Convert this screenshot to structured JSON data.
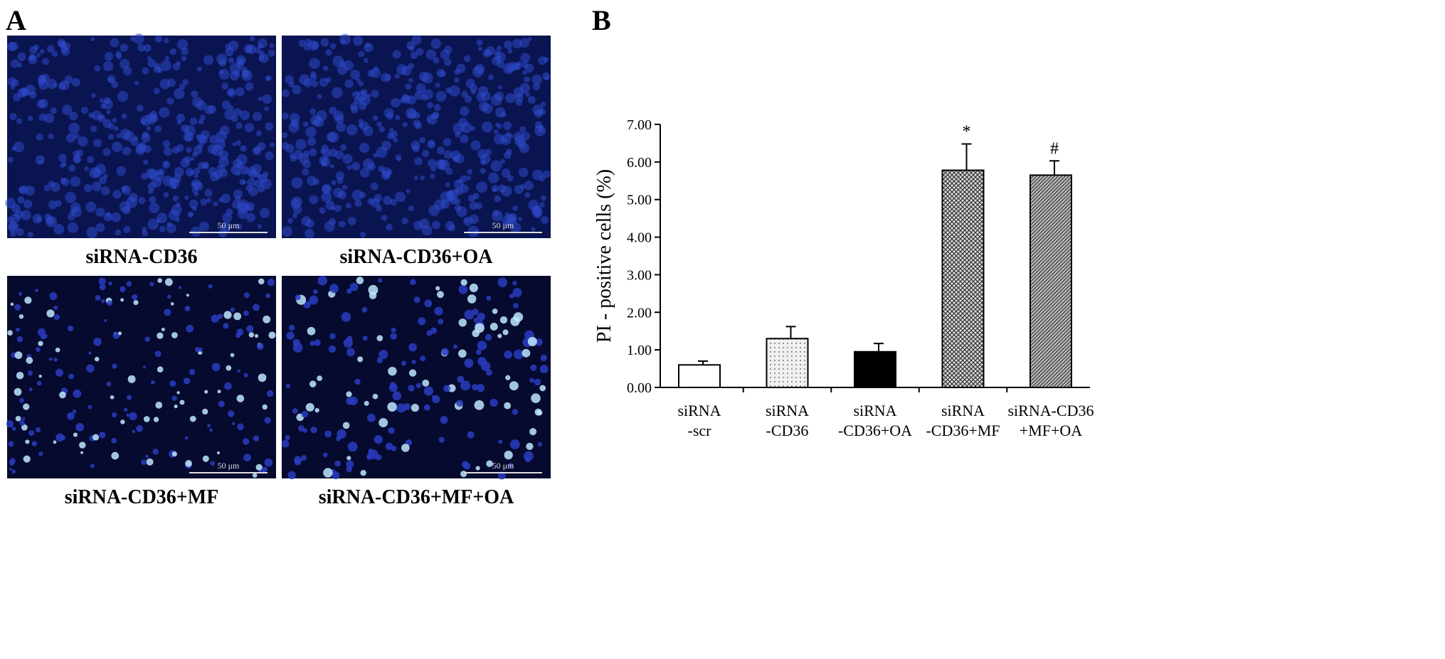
{
  "panel_labels": [
    "A",
    "B"
  ],
  "images": [
    {
      "caption": "siRNA-CD36",
      "scale_bar": "50 μm"
    },
    {
      "caption": "siRNA-CD36+OA",
      "scale_bar": "50 μm"
    },
    {
      "caption": "siRNA-CD36+MF",
      "scale_bar": "50 μm"
    },
    {
      "caption": "siRNA-CD36+MF+OA",
      "scale_bar": "50 μm"
    }
  ],
  "chart_data": {
    "type": "bar",
    "y_label": "PI - positive cells  (%)",
    "categories": [
      [
        "siRNA",
        "-scr"
      ],
      [
        "siRNA",
        "-CD36"
      ],
      [
        "siRNA",
        "-CD36+OA"
      ],
      [
        "siRNA",
        "-CD36+MF"
      ],
      [
        "siRNA-CD36",
        "+MF+OA"
      ]
    ],
    "values": [
      0.6,
      1.3,
      0.95,
      5.78,
      5.65
    ],
    "errors": [
      0.1,
      0.32,
      0.22,
      0.7,
      0.38
    ],
    "annotations": [
      null,
      null,
      null,
      "*",
      "#"
    ],
    "colors": [
      "#ffffff",
      "#d9d9d9",
      "#000000",
      "#a0a0a0",
      "#8c8c8c"
    ],
    "fill_patterns": [
      "solid",
      "dots",
      "solid",
      "crosshatch",
      "hatch"
    ],
    "ylim": [
      0,
      7
    ],
    "yticks": [
      {
        "value": 0,
        "label": "0.00"
      },
      {
        "value": 1,
        "label": "1.00"
      },
      {
        "value": 2,
        "label": "2.00"
      },
      {
        "value": 3,
        "label": "3.00"
      },
      {
        "value": 4,
        "label": "4.00"
      },
      {
        "value": 5,
        "label": "5.00"
      },
      {
        "value": 6,
        "label": "6.00"
      },
      {
        "value": 7,
        "label": "7.00"
      }
    ]
  }
}
